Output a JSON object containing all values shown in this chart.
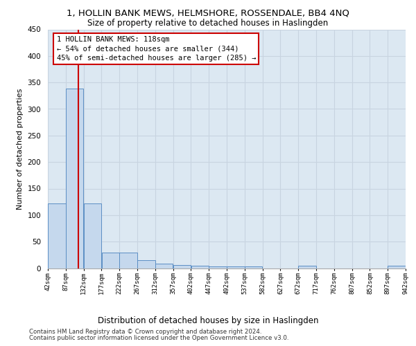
{
  "title": "1, HOLLIN BANK MEWS, HELMSHORE, ROSSENDALE, BB4 4NQ",
  "subtitle": "Size of property relative to detached houses in Haslingden",
  "xlabel": "Distribution of detached houses by size in Haslingden",
  "ylabel": "Number of detached properties",
  "footnote1": "Contains HM Land Registry data © Crown copyright and database right 2024.",
  "footnote2": "Contains public sector information licensed under the Open Government Licence v3.0.",
  "bar_color": "#c5d8ed",
  "bar_edge_color": "#5b8ec4",
  "grid_color": "#c8d4e0",
  "bg_color": "#dce8f2",
  "subject_line_color": "#cc0000",
  "annotation_box_color": "#cc0000",
  "bins": [
    42,
    87,
    132,
    177,
    222,
    267,
    312,
    357,
    402,
    447,
    492,
    537,
    582,
    627,
    672,
    717,
    762,
    807,
    852,
    897,
    942
  ],
  "counts": [
    122,
    338,
    122,
    29,
    29,
    15,
    9,
    6,
    5,
    3,
    3,
    3,
    0,
    0,
    5,
    0,
    0,
    0,
    0,
    5
  ],
  "subject_size": 118,
  "annotation_line1": "1 HOLLIN BANK MEWS: 118sqm",
  "annotation_line2": "← 54% of detached houses are smaller (344)",
  "annotation_line3": "45% of semi-detached houses are larger (285) →",
  "ylim": [
    0,
    450
  ],
  "yticks": [
    0,
    50,
    100,
    150,
    200,
    250,
    300,
    350,
    400,
    450
  ]
}
